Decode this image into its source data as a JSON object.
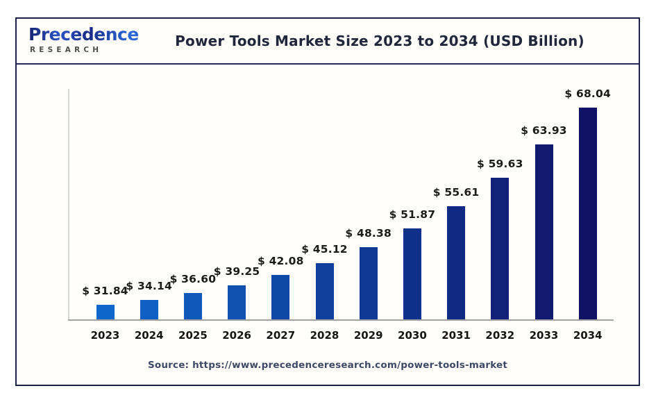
{
  "header": {
    "logo": {
      "brand": "Precedence",
      "sub": "RESEARCH"
    },
    "title": "Power Tools Market Size 2023 to 2034 (USD Billion)"
  },
  "chart_data": {
    "type": "bar",
    "title": "Power Tools Market Size 2023 to 2034 (USD Billion)",
    "categories": [
      "2023",
      "2024",
      "2025",
      "2026",
      "2027",
      "2028",
      "2029",
      "2030",
      "2031",
      "2032",
      "2033",
      "2034"
    ],
    "values": [
      31.84,
      34.14,
      36.6,
      39.25,
      42.08,
      45.12,
      48.38,
      51.87,
      55.61,
      59.63,
      63.93,
      68.04
    ],
    "value_prefix": "$ ",
    "unit": "USD Billion",
    "xlabel": "",
    "ylabel": "",
    "grid": false,
    "legend": false,
    "bar_color_start": "#0f67cb",
    "bar_color_end": "#111266",
    "axis_color": "#a2a2a2"
  },
  "footer": {
    "source": "Source: https://www.precedenceresearch.com/power-tools-market"
  }
}
